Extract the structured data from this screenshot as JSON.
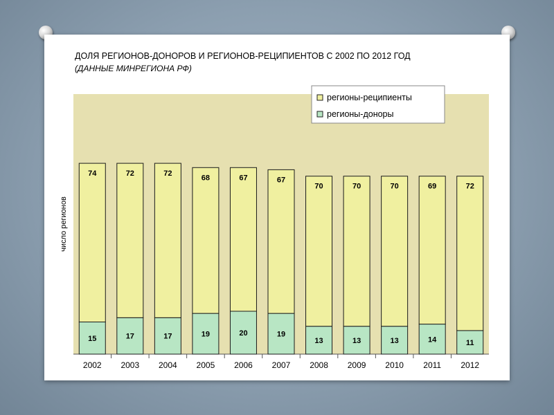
{
  "title": "ДОЛЯ РЕГИОНОВ-ДОНОРОВ И РЕГИОНОВ-РЕЦИПИЕНТОВ С 2002 ПО 2012 ГОД",
  "subtitle": "(ДАННЫЕ МИНРЕГИОНА РФ)",
  "colors": {
    "donors": "#b8e6c4",
    "recipients": "#f0f0a0",
    "plot_bg": "#e6e0b0"
  },
  "chart_data": {
    "type": "bar",
    "stacked": true,
    "title": "ДОЛЯ РЕГИОНОВ-ДОНОРОВ И РЕГИОНОВ-РЕЦИПИЕНТОВ С 2002 ПО 2012 ГОД",
    "subtitle": "(ДАННЫЕ МИНРЕГИОНА РФ)",
    "xlabel": "",
    "ylabel": "число регионов",
    "categories": [
      "2002",
      "2003",
      "2004",
      "2005",
      "2006",
      "2007",
      "2008",
      "2009",
      "2010",
      "2011",
      "2012"
    ],
    "series": [
      {
        "name": "регионы-доноры",
        "values": [
          15,
          17,
          17,
          19,
          20,
          19,
          13,
          13,
          13,
          14,
          11
        ]
      },
      {
        "name": "регионы-реципиенты",
        "values": [
          74,
          72,
          72,
          68,
          67,
          67,
          70,
          70,
          70,
          69,
          72
        ]
      }
    ],
    "legend": {
      "position": "top-right",
      "entries": [
        "регионы-реципиенты",
        "регионы-доноры"
      ]
    },
    "grid": false,
    "data_labels": true
  }
}
